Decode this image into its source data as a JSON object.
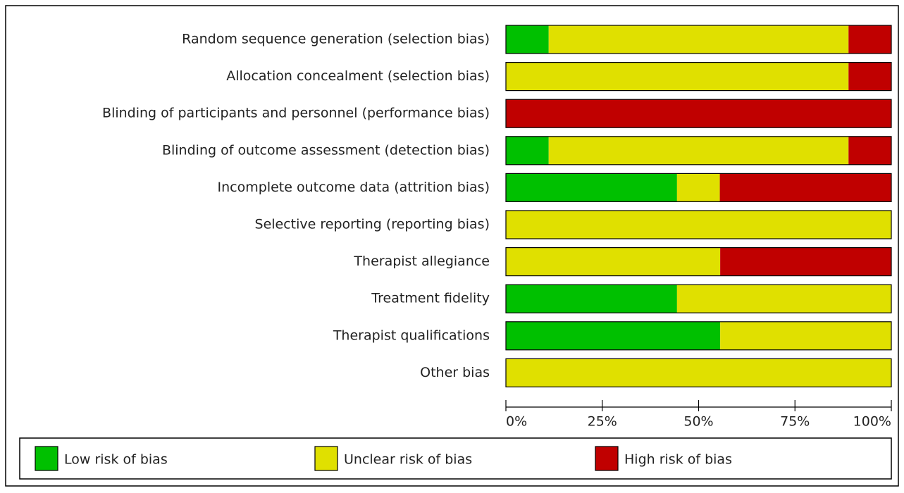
{
  "chart_data": {
    "type": "stacked-bar-horizontal",
    "categories": [
      "Random sequence generation (selection bias)",
      "Allocation concealment (selection bias)",
      "Blinding of participants and personnel (performance bias)",
      "Blinding of outcome assessment (detection bias)",
      "Incomplete outcome data (attrition bias)",
      "Selective reporting (reporting bias)",
      "Therapist allegiance",
      "Treatment fidelity",
      "Therapist qualifications",
      "Other bias"
    ],
    "series": [
      {
        "name": "Low risk of bias",
        "color": "#00c000",
        "values": [
          11.1,
          0,
          0,
          11.1,
          44.4,
          0,
          0,
          44.4,
          55.6,
          0
        ]
      },
      {
        "name": "Unclear risk of bias",
        "color": "#e0e000",
        "values": [
          77.8,
          88.9,
          0,
          77.8,
          11.1,
          100,
          55.6,
          55.6,
          44.4,
          100
        ]
      },
      {
        "name": "High risk of bias",
        "color": "#c00000",
        "values": [
          11.1,
          11.1,
          100,
          11.1,
          44.4,
          0,
          44.4,
          0,
          0,
          0
        ]
      }
    ],
    "xlim": [
      0,
      100
    ],
    "xticks": [
      {
        "value": 0,
        "label": "0%"
      },
      {
        "value": 25,
        "label": "25%"
      },
      {
        "value": 50,
        "label": "50%"
      },
      {
        "value": 75,
        "label": "75%"
      },
      {
        "value": 100,
        "label": "100%"
      }
    ]
  }
}
